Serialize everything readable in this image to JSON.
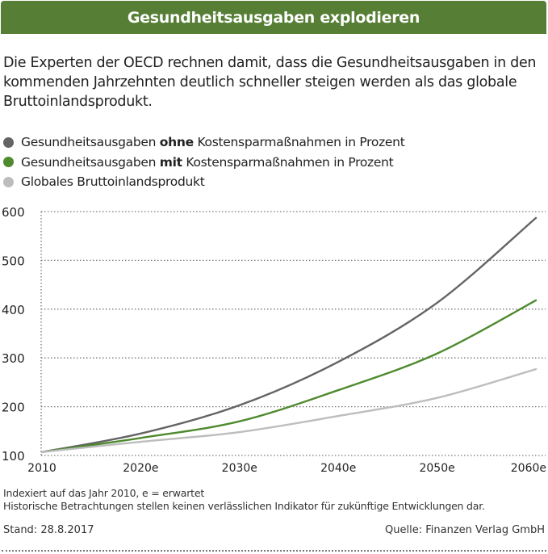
{
  "header": {
    "title": "Gesundheitsausgaben explodieren"
  },
  "intro": "Die Experten der OECD rechnen damit, dass die Gesundheitsausgaben in den kommenden Jahrzehnten deutlich schneller steigen werden als das globale Bruttoinlandsprodukt.",
  "legend": [
    {
      "pre": "Gesundheitsausgaben ",
      "bold": "ohne",
      "post": " Kostensparmaßnahmen in Prozent",
      "color": "#646464"
    },
    {
      "pre": "Gesundheitsausgaben ",
      "bold": "mit",
      "post": " Kostensparmaßnahmen in Prozent",
      "color": "#4f8a2e"
    },
    {
      "pre": "Globales Bruttoinlandsprodukt",
      "bold": "",
      "post": "",
      "color": "#bdbdbd"
    }
  ],
  "chart_data": {
    "type": "line",
    "title": "Gesundheitsausgaben explodieren",
    "xlabel": "",
    "ylabel": "",
    "x": [
      2010,
      2020,
      2030,
      2040,
      2050,
      2060
    ],
    "x_tick_labels": [
      "2010",
      "2020e",
      "2030e",
      "2040e",
      "2050e",
      "2060e"
    ],
    "y_ticks": [
      100,
      200,
      300,
      400,
      500,
      600
    ],
    "y_tick_labels": [
      "100",
      "200",
      "300",
      "400",
      "500",
      "600"
    ],
    "ylim": [
      100,
      600
    ],
    "xlim": [
      2010,
      2060
    ],
    "grid": true,
    "legend_position": "top-left",
    "series": [
      {
        "name": "Gesundheitsausgaben ohne Kostensparmaßnahmen in Prozent",
        "color": "#646464",
        "values": [
          107,
          145,
          203,
          292,
          413,
          587
        ]
      },
      {
        "name": "Gesundheitsausgaben mit Kostensparmaßnahmen in Prozent",
        "color": "#4f8a2e",
        "values": [
          107,
          136,
          170,
          234,
          309,
          418
        ]
      },
      {
        "name": "Globales Bruttoinlandsprodukt",
        "color": "#bdbdbd",
        "values": [
          107,
          128,
          148,
          181,
          218,
          277
        ]
      }
    ]
  },
  "notes": {
    "line1": "Indexiert auf das Jahr 2010, e = erwartet",
    "line2": "Historische Betrachtungen stellen keinen verlässlichen Indikator für zukünftige Entwicklungen dar."
  },
  "footer": {
    "stand": "Stand: 28.8.2017",
    "quelle": "Quelle: Finanzen Verlag GmbH"
  }
}
